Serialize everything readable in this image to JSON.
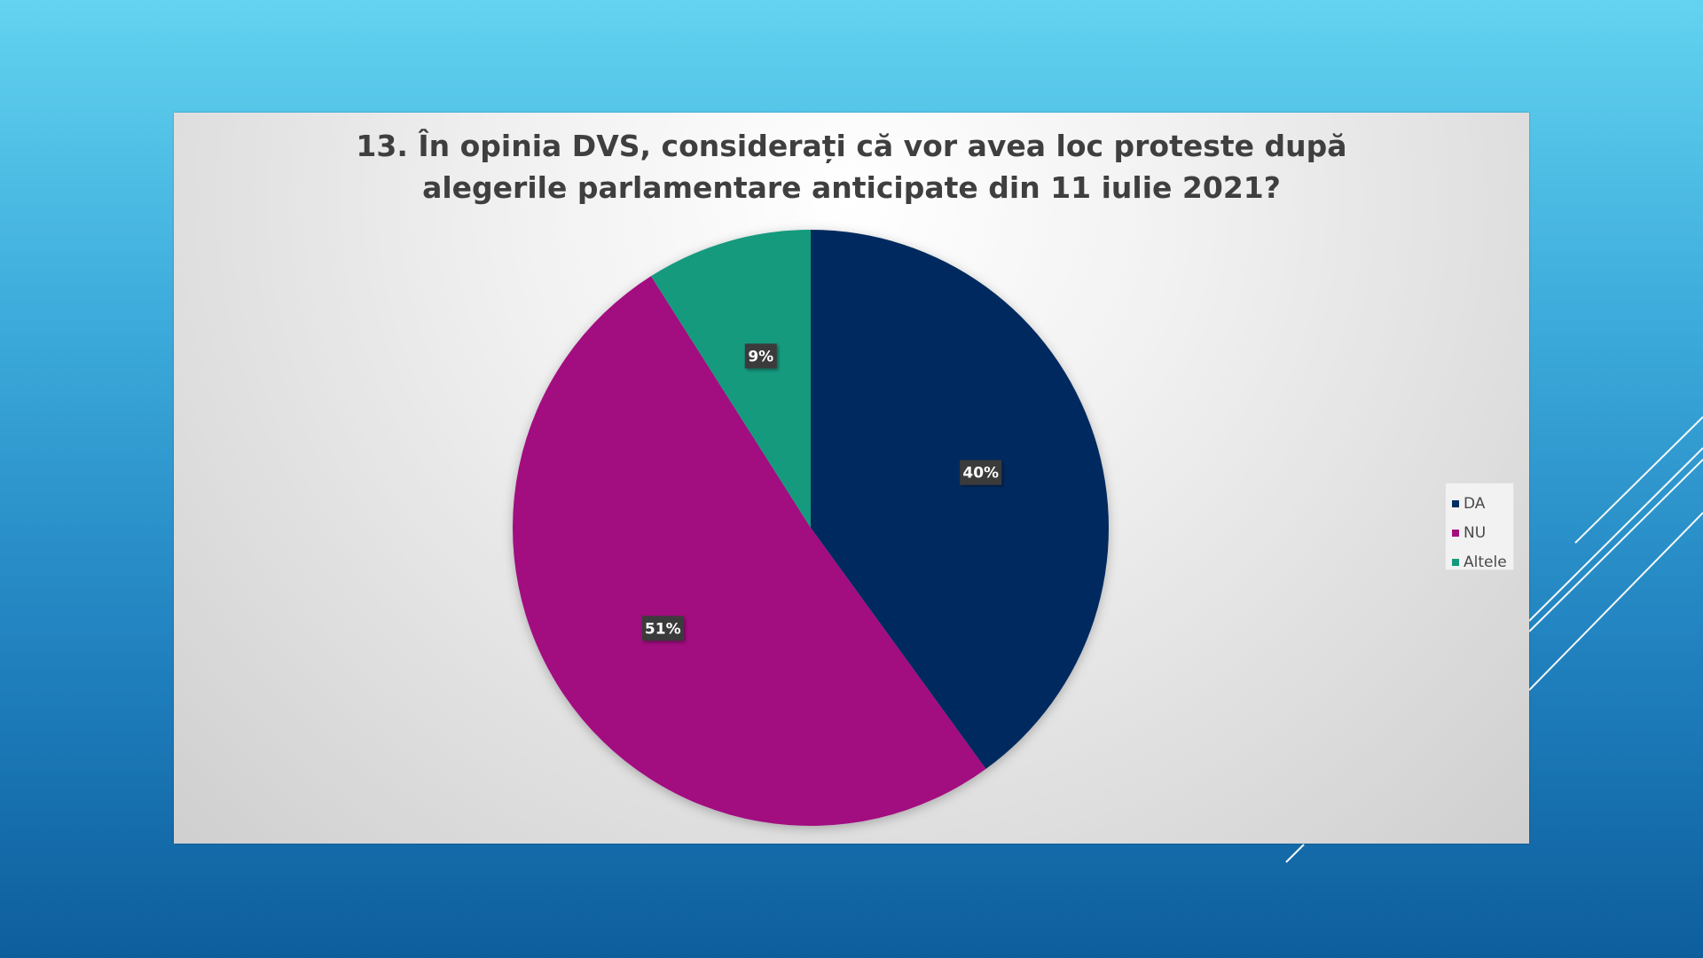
{
  "chart_data": {
    "type": "pie",
    "title": "13. În opinia DVS, considerați că vor avea loc proteste după alegerile parlamentare anticipate din 11 iulie 2021?",
    "title_lines": [
      "13. În opinia DVS, considerați că vor avea loc proteste după",
      "alegerile parlamentare anticipate din 11 iulie 2021?"
    ],
    "categories": [
      "DA",
      "NU",
      "Altele"
    ],
    "values": [
      40,
      51,
      9
    ],
    "data_labels": [
      "40%",
      "51%",
      "9%"
    ],
    "colors": [
      "#042c5f",
      "#a20f80",
      "#139a7e"
    ],
    "legend_position": "right"
  }
}
